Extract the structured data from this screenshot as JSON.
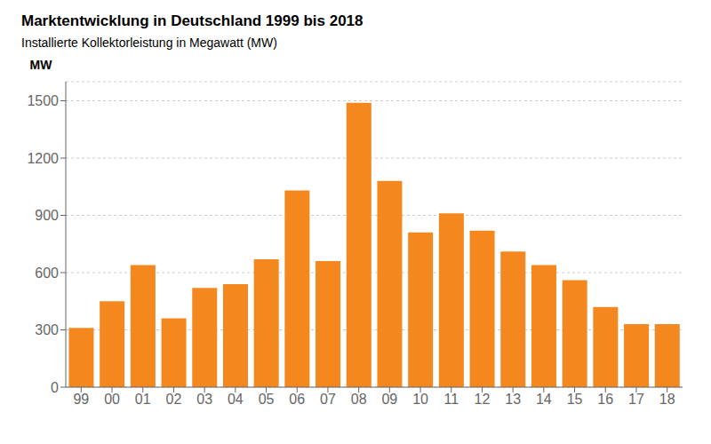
{
  "chart_data": {
    "type": "bar",
    "title": "Marktentwicklung in Deutschland 1999 bis 2018",
    "subtitle": "Installierte Kollektorleistung in Megawatt (MW)",
    "ylabel": "MW",
    "categories": [
      "99",
      "00",
      "01",
      "02",
      "03",
      "04",
      "05",
      "06",
      "07",
      "08",
      "09",
      "10",
      "11",
      "12",
      "13",
      "14",
      "15",
      "16",
      "17",
      "18"
    ],
    "values": [
      310,
      450,
      640,
      360,
      520,
      540,
      670,
      1030,
      660,
      1490,
      1080,
      810,
      910,
      820,
      710,
      640,
      560,
      420,
      330,
      330
    ],
    "color": "#F5871F",
    "ylim": [
      0,
      1600
    ],
    "yticks": [
      0,
      300,
      600,
      900,
      1200,
      1500
    ],
    "grid": true
  }
}
